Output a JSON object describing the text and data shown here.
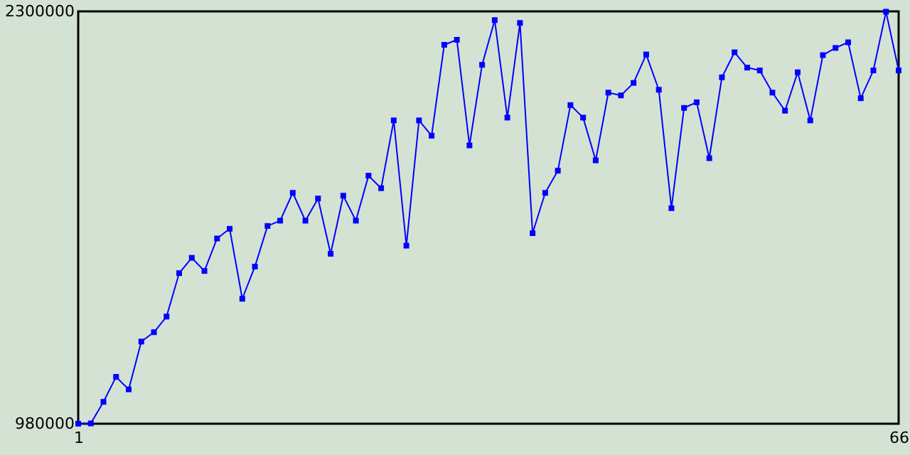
{
  "chart_data": {
    "type": "line",
    "x": [
      1,
      2,
      3,
      4,
      5,
      6,
      7,
      8,
      9,
      10,
      11,
      12,
      13,
      14,
      15,
      16,
      17,
      18,
      19,
      20,
      21,
      22,
      23,
      24,
      25,
      26,
      27,
      28,
      29,
      30,
      31,
      32,
      33,
      34,
      35,
      36,
      37,
      38,
      39,
      40,
      41,
      42,
      43,
      44,
      45,
      46,
      47,
      48,
      49,
      50,
      51,
      52,
      53,
      54,
      55,
      56,
      57,
      58,
      59,
      60,
      61,
      62,
      63,
      64,
      65,
      66
    ],
    "series": [
      {
        "color": "#0000ff",
        "values": [
          980000,
          981000,
          1050000,
          1130000,
          1090000,
          1243000,
          1273000,
          1323000,
          1462000,
          1511000,
          1469000,
          1573000,
          1604000,
          1380000,
          1483000,
          1613000,
          1630000,
          1719000,
          1630000,
          1701000,
          1524000,
          1710000,
          1630000,
          1774000,
          1734000,
          1951000,
          1550000,
          1951000,
          1902000,
          2193000,
          2209000,
          1871000,
          2129000,
          2272000,
          1960000,
          2263000,
          1590000,
          1719000,
          1790000,
          2000000,
          1960000,
          1823000,
          2040000,
          2031000,
          2071000,
          2162000,
          2049000,
          1670000,
          1991000,
          2009000,
          1830000,
          2089000,
          2169000,
          2120000,
          2111000,
          2040000,
          1982000,
          2105000,
          1951000,
          2160000,
          2183000,
          2201000,
          2022000,
          2111000,
          2299000,
          2111000
        ]
      }
    ],
    "xlim": [
      1,
      66
    ],
    "xticks": [
      1,
      66
    ],
    "ylim": [
      980000,
      2300000
    ],
    "yticks": [
      980000,
      2300000
    ],
    "marker": "square",
    "line_style": "solid",
    "grid": false
  }
}
